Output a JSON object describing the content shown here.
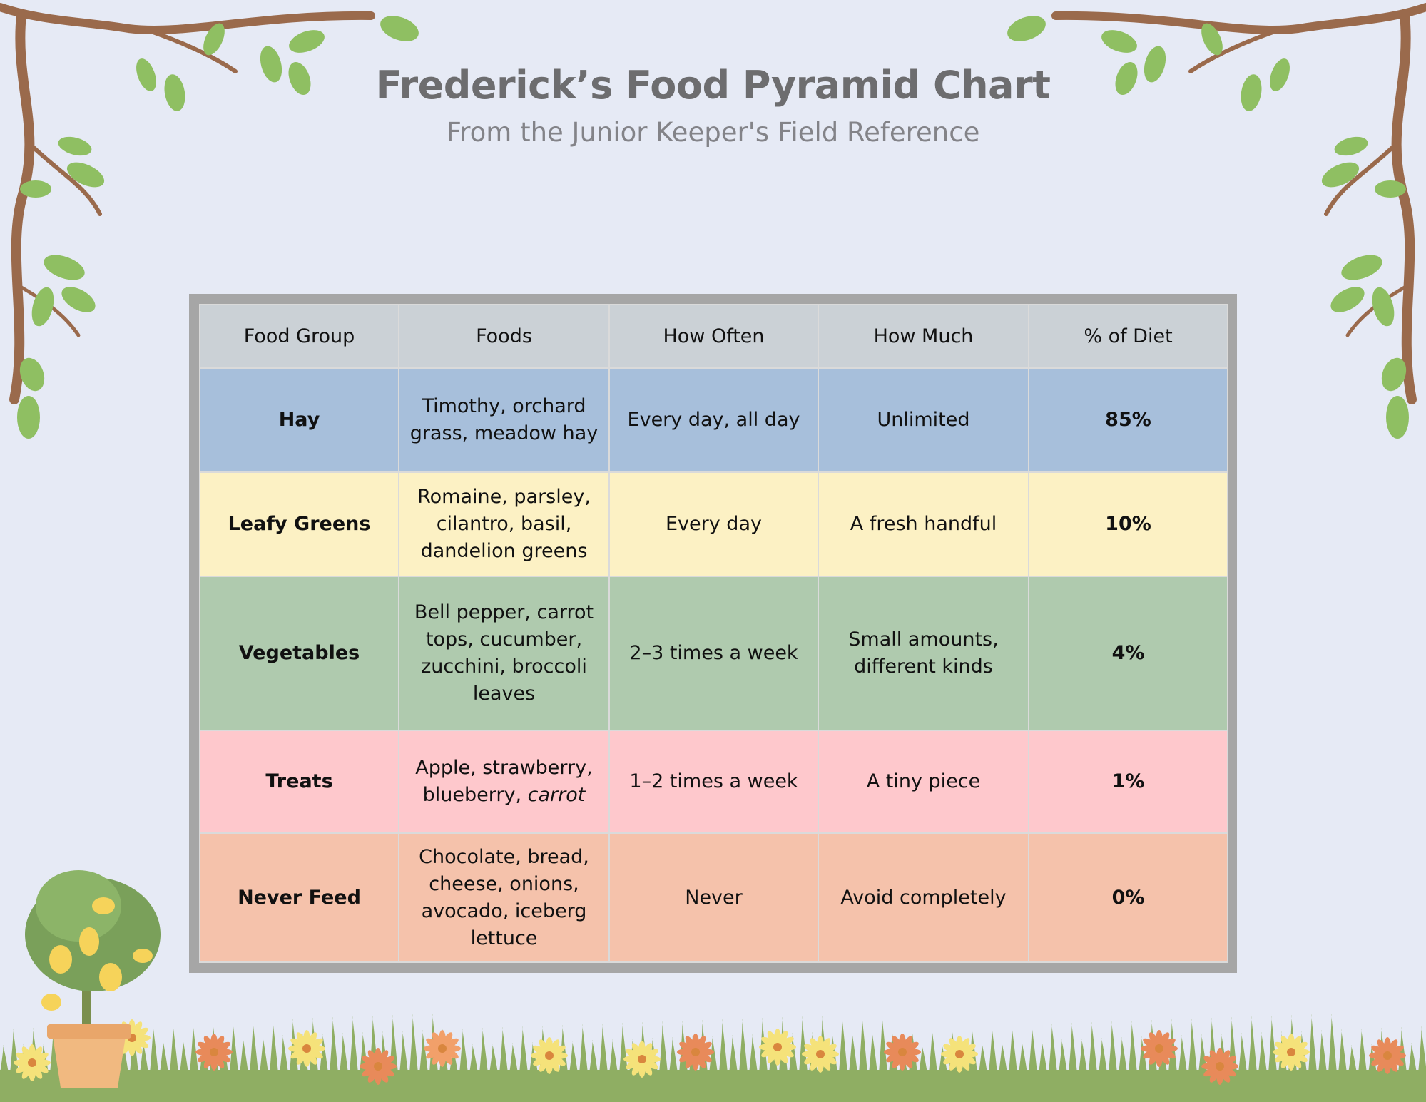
{
  "header": {
    "title": "Frederick’s Food Pyramid Chart",
    "subtitle": "From the Junior Keeper's Field Reference"
  },
  "table": {
    "columns": [
      "Food Group",
      "Foods",
      "How Often",
      "How Much",
      "% of Diet"
    ],
    "rows": [
      {
        "color": "#a7bfdb",
        "cells": [
          "Hay",
          "Timothy, orchard grass, meadow hay",
          "Every day, all day",
          "Unlimited",
          "85%"
        ]
      },
      {
        "color": "#fcf1c4",
        "cells": [
          "Leafy Greens",
          "Romaine, parsley, cilantro, basil, dandelion greens",
          "Every day",
          "A fresh handful",
          "10%"
        ]
      },
      {
        "color": "#afcaae",
        "cells": [
          "Vegetables",
          "Bell pepper, carrot tops, cucumber, zucchini, broccoli leaves",
          "2–3 times a week",
          "Small amounts, different kinds",
          "4%"
        ]
      },
      {
        "color": "#fec8cc",
        "cells": [
          "Treats",
          [
            "Apple, strawberry, blueberry,",
            "carrot"
          ],
          "1–2 times a week",
          "A tiny piece",
          "1%"
        ]
      },
      {
        "color": "#f5c2ab",
        "cells": [
          "Never Feed",
          "Chocolate, bread, cheese, onions, avocado, iceberg lettuce",
          "Never",
          "Avoid completely",
          "0%"
        ]
      }
    ]
  }
}
